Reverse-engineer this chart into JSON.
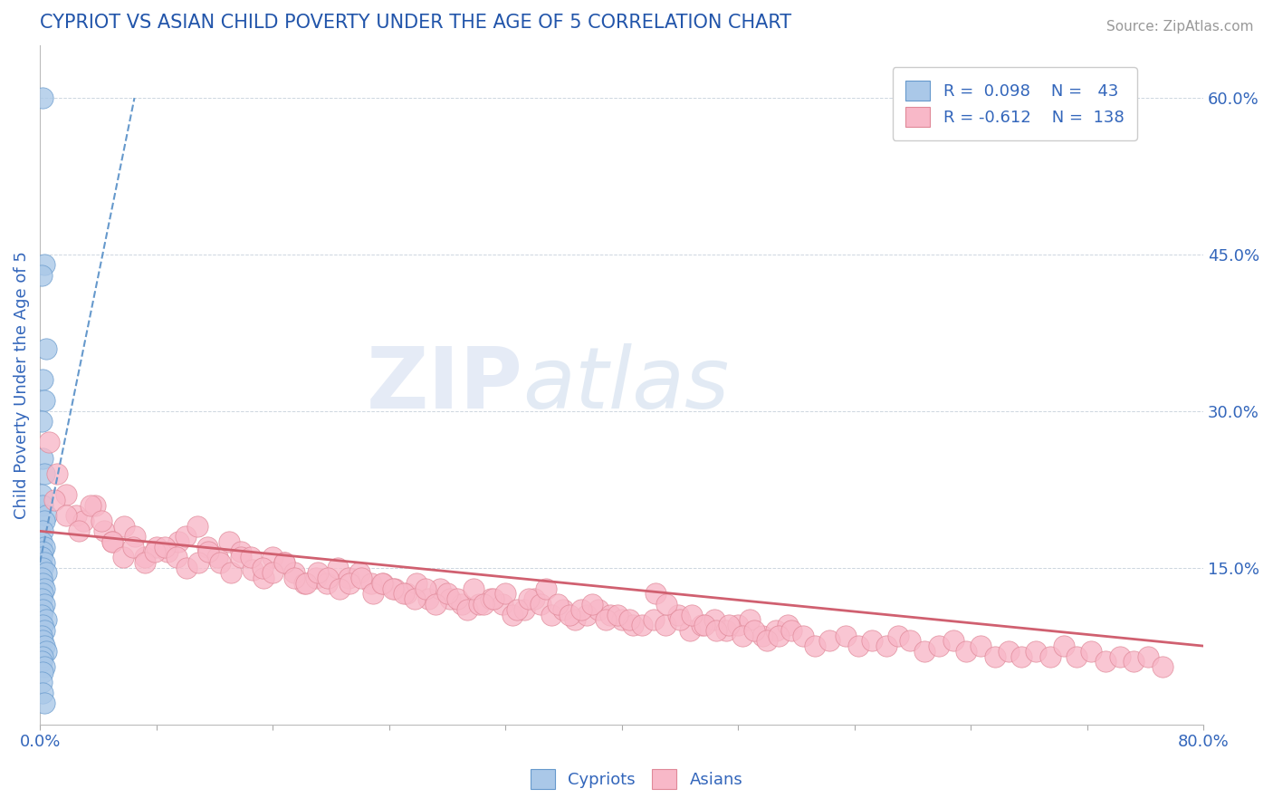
{
  "title": "CYPRIOT VS ASIAN CHILD POVERTY UNDER THE AGE OF 5 CORRELATION CHART",
  "source_text": "Source: ZipAtlas.com",
  "ylabel": "Child Poverty Under the Age of 5",
  "right_yticks": [
    "60.0%",
    "45.0%",
    "30.0%",
    "15.0%"
  ],
  "right_ytick_vals": [
    0.6,
    0.45,
    0.3,
    0.15
  ],
  "cypriot_color": "#aac8e8",
  "cypriot_edge_color": "#6699cc",
  "asian_color": "#f8b8c8",
  "asian_edge_color": "#e08898",
  "cypriot_trend_color": "#6699cc",
  "asian_trend_color": "#d06070",
  "watermark_color": "#d0dff0",
  "title_color": "#2255aa",
  "axis_label_color": "#3366bb",
  "legend_text_color": "#3366bb",
  "cypriot_scatter_x": [
    0.002,
    0.003,
    0.001,
    0.004,
    0.002,
    0.003,
    0.001,
    0.002,
    0.003,
    0.001,
    0.002,
    0.004,
    0.003,
    0.002,
    0.001,
    0.003,
    0.002,
    0.001,
    0.003,
    0.002,
    0.004,
    0.001,
    0.002,
    0.003,
    0.002,
    0.001,
    0.003,
    0.002,
    0.001,
    0.004,
    0.002,
    0.003,
    0.001,
    0.002,
    0.003,
    0.004,
    0.002,
    0.001,
    0.003,
    0.002,
    0.001,
    0.002,
    0.003
  ],
  "cypriot_scatter_y": [
    0.6,
    0.44,
    0.43,
    0.36,
    0.33,
    0.31,
    0.29,
    0.255,
    0.24,
    0.22,
    0.21,
    0.2,
    0.195,
    0.185,
    0.175,
    0.17,
    0.165,
    0.16,
    0.155,
    0.15,
    0.145,
    0.14,
    0.135,
    0.13,
    0.125,
    0.12,
    0.115,
    0.11,
    0.105,
    0.1,
    0.095,
    0.09,
    0.085,
    0.08,
    0.075,
    0.07,
    0.065,
    0.06,
    0.055,
    0.05,
    0.04,
    0.03,
    0.02
  ],
  "asian_scatter_x": [
    0.006,
    0.012,
    0.018,
    0.025,
    0.03,
    0.038,
    0.044,
    0.05,
    0.058,
    0.065,
    0.072,
    0.08,
    0.088,
    0.095,
    0.1,
    0.108,
    0.115,
    0.122,
    0.13,
    0.138,
    0.01,
    0.018,
    0.027,
    0.035,
    0.042,
    0.05,
    0.057,
    0.064,
    0.072,
    0.079,
    0.086,
    0.094,
    0.101,
    0.109,
    0.116,
    0.124,
    0.131,
    0.138,
    0.146,
    0.154,
    0.16,
    0.168,
    0.175,
    0.182,
    0.19,
    0.197,
    0.205,
    0.212,
    0.22,
    0.228,
    0.145,
    0.153,
    0.16,
    0.168,
    0.175,
    0.183,
    0.191,
    0.198,
    0.206,
    0.213,
    0.221,
    0.229,
    0.236,
    0.244,
    0.252,
    0.259,
    0.267,
    0.275,
    0.282,
    0.29,
    0.235,
    0.243,
    0.25,
    0.258,
    0.265,
    0.272,
    0.28,
    0.287,
    0.294,
    0.302,
    0.31,
    0.318,
    0.325,
    0.333,
    0.34,
    0.298,
    0.305,
    0.312,
    0.32,
    0.328,
    0.336,
    0.344,
    0.352,
    0.36,
    0.368,
    0.376,
    0.384,
    0.392,
    0.4,
    0.408,
    0.348,
    0.356,
    0.364,
    0.372,
    0.38,
    0.389,
    0.397,
    0.405,
    0.414,
    0.422,
    0.43,
    0.439,
    0.447,
    0.455,
    0.464,
    0.472,
    0.48,
    0.488,
    0.497,
    0.506,
    0.514,
    0.423,
    0.431,
    0.44,
    0.448,
    0.457,
    0.465,
    0.474,
    0.483,
    0.491,
    0.5,
    0.508,
    0.517,
    0.525,
    0.533,
    0.543,
    0.554,
    0.563,
    0.572,
    0.582,
    0.59,
    0.598,
    0.608,
    0.618,
    0.628,
    0.637,
    0.647,
    0.657,
    0.666,
    0.675,
    0.685,
    0.695,
    0.704,
    0.713,
    0.723,
    0.733,
    0.743,
    0.752,
    0.762,
    0.772
  ],
  "asian_scatter_y": [
    0.27,
    0.24,
    0.22,
    0.2,
    0.195,
    0.21,
    0.185,
    0.175,
    0.19,
    0.18,
    0.16,
    0.17,
    0.165,
    0.175,
    0.18,
    0.19,
    0.17,
    0.16,
    0.175,
    0.165,
    0.215,
    0.2,
    0.185,
    0.21,
    0.195,
    0.175,
    0.16,
    0.17,
    0.155,
    0.165,
    0.17,
    0.16,
    0.15,
    0.155,
    0.165,
    0.155,
    0.145,
    0.16,
    0.148,
    0.14,
    0.16,
    0.155,
    0.145,
    0.135,
    0.14,
    0.135,
    0.15,
    0.14,
    0.145,
    0.135,
    0.16,
    0.15,
    0.145,
    0.155,
    0.14,
    0.135,
    0.145,
    0.14,
    0.13,
    0.135,
    0.14,
    0.125,
    0.135,
    0.13,
    0.125,
    0.135,
    0.12,
    0.13,
    0.12,
    0.115,
    0.135,
    0.13,
    0.125,
    0.12,
    0.13,
    0.115,
    0.125,
    0.12,
    0.11,
    0.115,
    0.12,
    0.115,
    0.105,
    0.11,
    0.12,
    0.13,
    0.115,
    0.12,
    0.125,
    0.11,
    0.12,
    0.115,
    0.105,
    0.11,
    0.1,
    0.105,
    0.11,
    0.105,
    0.1,
    0.095,
    0.13,
    0.115,
    0.105,
    0.11,
    0.115,
    0.1,
    0.105,
    0.1,
    0.095,
    0.1,
    0.095,
    0.105,
    0.09,
    0.095,
    0.1,
    0.09,
    0.095,
    0.1,
    0.085,
    0.09,
    0.095,
    0.125,
    0.115,
    0.1,
    0.105,
    0.095,
    0.09,
    0.095,
    0.085,
    0.09,
    0.08,
    0.085,
    0.09,
    0.085,
    0.075,
    0.08,
    0.085,
    0.075,
    0.08,
    0.075,
    0.085,
    0.08,
    0.07,
    0.075,
    0.08,
    0.07,
    0.075,
    0.065,
    0.07,
    0.065,
    0.07,
    0.065,
    0.075,
    0.065,
    0.07,
    0.06,
    0.065,
    0.06,
    0.065,
    0.055
  ],
  "cypriot_trend_x": [
    0.0,
    0.065
  ],
  "cypriot_trend_y": [
    0.155,
    0.6
  ],
  "asian_trend_x": [
    0.0,
    0.8
  ],
  "asian_trend_y": [
    0.185,
    0.075
  ],
  "xlim": [
    0.0,
    0.8
  ],
  "ylim": [
    0.0,
    0.65
  ]
}
